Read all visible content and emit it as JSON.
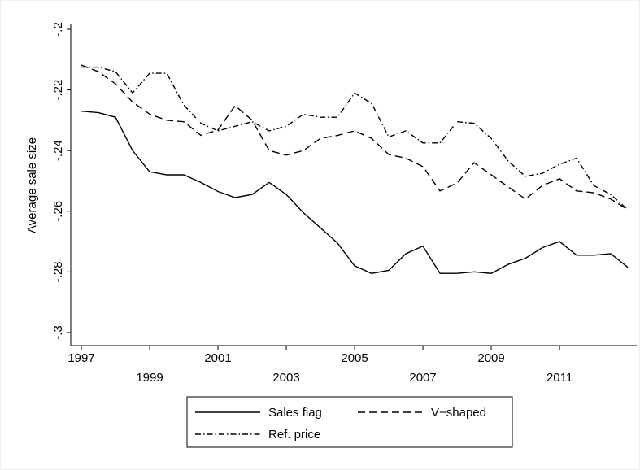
{
  "chart_data": {
    "type": "line",
    "ylabel": "Average sale size",
    "x": [
      1997,
      1997.5,
      1998,
      1998.5,
      1999,
      1999.5,
      2000,
      2000.5,
      2001,
      2001.5,
      2002,
      2002.5,
      2003,
      2003.5,
      2004,
      2004.5,
      2005,
      2005.5,
      2006,
      2006.5,
      2007,
      2007.5,
      2008,
      2008.5,
      2009,
      2009.5,
      2010,
      2010.5,
      2011,
      2011.5,
      2012,
      2012.5,
      2013
    ],
    "series": [
      {
        "name": "Sales flag",
        "color": "#000000",
        "line_style": "solid",
        "values": [
          -0.227,
          -0.2275,
          -0.229,
          -0.24,
          -0.247,
          -0.248,
          -0.248,
          -0.2505,
          -0.2535,
          -0.2555,
          -0.2545,
          -0.2505,
          -0.2545,
          -0.2605,
          -0.2655,
          -0.2705,
          -0.278,
          -0.2805,
          -0.2795,
          -0.274,
          -0.2715,
          -0.2805,
          -0.2805,
          -0.28,
          -0.2805,
          -0.2775,
          -0.2755,
          -0.272,
          -0.27,
          -0.2745,
          -0.2745,
          -0.274,
          -0.2785
        ]
      },
      {
        "name": "V−shaped",
        "color": "#000000",
        "line_style": "dashed",
        "values": [
          -0.2118,
          -0.214,
          -0.218,
          -0.224,
          -0.228,
          -0.23,
          -0.2305,
          -0.235,
          -0.2332,
          -0.2252,
          -0.23,
          -0.24,
          -0.2415,
          -0.24,
          -0.236,
          -0.235,
          -0.2335,
          -0.236,
          -0.2413,
          -0.2425,
          -0.2453,
          -0.2533,
          -0.2507,
          -0.244,
          -0.248,
          -0.252,
          -0.256,
          -0.2515,
          -0.2493,
          -0.2533,
          -0.2539,
          -0.256,
          -0.2595
        ]
      },
      {
        "name": "Ref. price",
        "color": "#000000",
        "line_style": "dashdot",
        "values": [
          -0.2125,
          -0.2125,
          -0.214,
          -0.221,
          -0.2145,
          -0.2145,
          -0.225,
          -0.231,
          -0.2335,
          -0.232,
          -0.2305,
          -0.2335,
          -0.232,
          -0.228,
          -0.229,
          -0.229,
          -0.221,
          -0.2245,
          -0.2355,
          -0.2335,
          -0.2375,
          -0.2375,
          -0.2305,
          -0.231,
          -0.236,
          -0.2435,
          -0.2485,
          -0.2475,
          -0.2445,
          -0.2425,
          -0.2515,
          -0.2545,
          -0.2595
        ]
      }
    ],
    "xlim": [
      1996.69,
      2013.26
    ],
    "xticks": [
      1997,
      1999,
      2001,
      2003,
      2005,
      2007,
      2009,
      2011
    ],
    "ylim": [
      -0.3043,
      -0.1984
    ],
    "yticks": [
      {
        "value": -0.2,
        "label": "-.2"
      },
      {
        "value": -0.22,
        "label": "-.22"
      },
      {
        "value": -0.24,
        "label": "-.24"
      },
      {
        "value": -0.26,
        "label": "-.26"
      },
      {
        "value": -0.28,
        "label": "-.28"
      },
      {
        "value": -0.3,
        "label": "-.3"
      }
    ],
    "grid": false,
    "legend": "bottom"
  }
}
